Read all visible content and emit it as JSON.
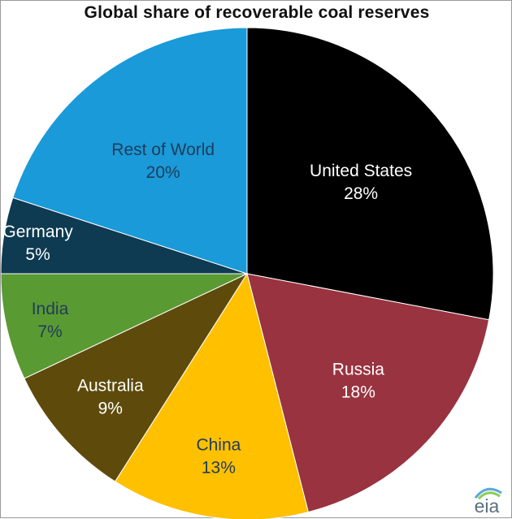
{
  "chart_data": {
    "type": "pie",
    "title": "Global share of recoverable coal reserves",
    "slices": [
      {
        "label": "United States",
        "value": 28,
        "value_label": "28%",
        "color": "#000000",
        "text_color": "#ffffff"
      },
      {
        "label": "Russia",
        "value": 18,
        "value_label": "18%",
        "color": "#993340",
        "text_color": "#ffffff"
      },
      {
        "label": "China",
        "value": 13,
        "value_label": "13%",
        "color": "#ffc000",
        "text_color": "#1f3c5a"
      },
      {
        "label": "Australia",
        "value": 9,
        "value_label": "9%",
        "color": "#5e4b0b",
        "text_color": "#ffffff"
      },
      {
        "label": "India",
        "value": 7,
        "value_label": "7%",
        "color": "#5a9a32",
        "text_color": "#1f3c5a"
      },
      {
        "label": "Germany",
        "value": 5,
        "value_label": "5%",
        "color": "#0e3a52",
        "text_color": "#ffffff"
      },
      {
        "label": "Rest of World",
        "value": 20,
        "value_label": "20%",
        "color": "#1a9ad8",
        "text_color": "#1f3c5a"
      }
    ],
    "start_angle": "12 o'clock",
    "direction": "clockwise"
  },
  "logo": {
    "text": "eia"
  }
}
